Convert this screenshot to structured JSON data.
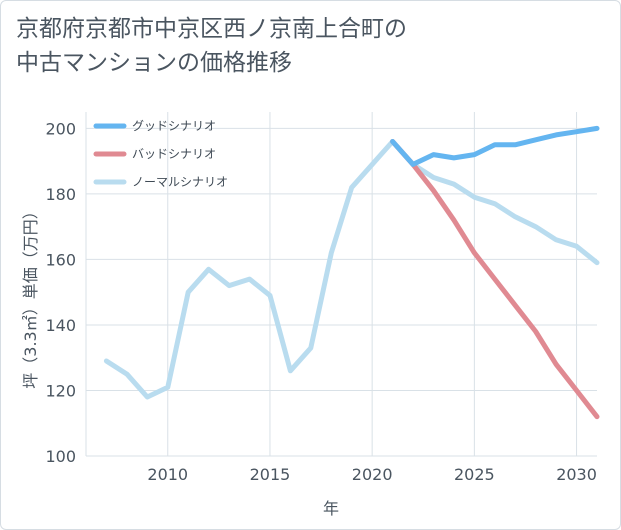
{
  "chart_data": {
    "type": "line",
    "title_line1": "京都府京都市中京区西ノ京南上合町の",
    "title_line2": "中古マンションの価格推移",
    "xlabel": "年",
    "ylabel": "坪（3.3㎡）単価（万円）",
    "xlim": [
      2006,
      2031
    ],
    "ylim": [
      100,
      205
    ],
    "x_ticks": [
      2010,
      2015,
      2020,
      2025,
      2030
    ],
    "y_ticks": [
      100,
      120,
      140,
      160,
      180,
      200
    ],
    "x_tick_labels": [
      "2010",
      "2015",
      "2020",
      "2025",
      "2030"
    ],
    "y_tick_labels": [
      "100",
      "120",
      "140",
      "160",
      "180",
      "200"
    ],
    "grid": true,
    "legend_position": "top-left",
    "series": [
      {
        "name": "グッドシナリオ",
        "color": "#64b5f0",
        "x": [
          2021,
          2022,
          2023,
          2024,
          2025,
          2026,
          2027,
          2028,
          2029,
          2030,
          2031
        ],
        "values": [
          196,
          189,
          192,
          191,
          192,
          195,
          195,
          196.5,
          198,
          199,
          200
        ]
      },
      {
        "name": "バッドシナリオ",
        "color": "#e08a92",
        "x": [
          2021,
          2022,
          2023,
          2024,
          2025,
          2026,
          2027,
          2028,
          2029,
          2030,
          2031
        ],
        "values": [
          196,
          189,
          181,
          172,
          162,
          154,
          146,
          138,
          128,
          120,
          112
        ]
      },
      {
        "name": "ノーマルシナリオ",
        "color": "#b9dcef",
        "x": [
          2007,
          2008,
          2009,
          2010,
          2011,
          2012,
          2013,
          2014,
          2015,
          2016,
          2017,
          2018,
          2019,
          2020,
          2021,
          2022,
          2023,
          2024,
          2025,
          2026,
          2027,
          2028,
          2029,
          2030,
          2031
        ],
        "values": [
          129,
          125,
          118,
          121,
          150,
          157,
          152,
          154,
          149,
          126,
          133,
          162,
          182,
          189,
          196,
          189,
          185,
          183,
          179,
          177,
          173,
          170,
          166,
          164,
          159
        ]
      }
    ]
  }
}
